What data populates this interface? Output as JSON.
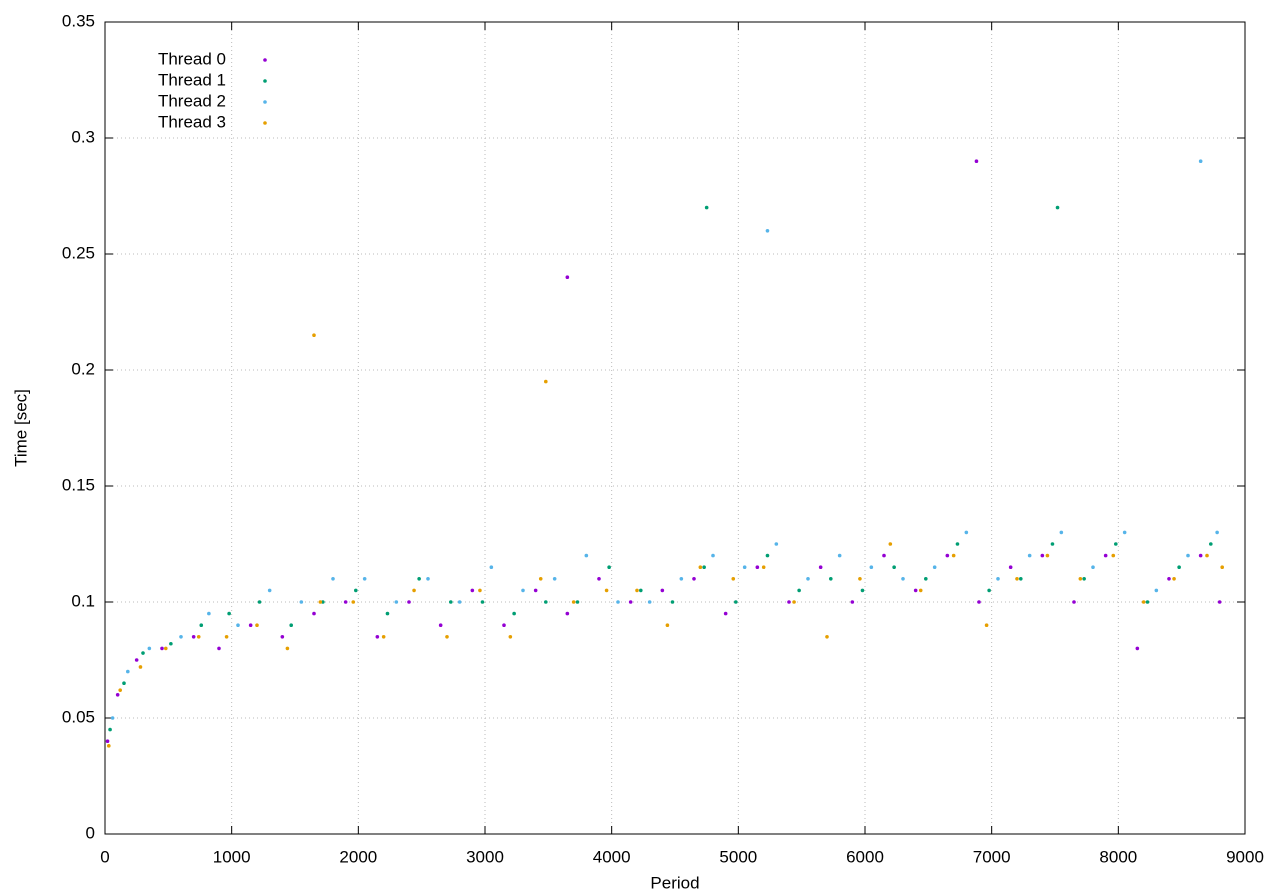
{
  "chart_data": {
    "type": "scatter",
    "x_label": "Period",
    "y_label": "Time [sec]",
    "xlim": [
      0,
      9000
    ],
    "ylim": [
      0,
      0.35
    ],
    "xticks": [
      0,
      1000,
      2000,
      3000,
      4000,
      5000,
      6000,
      7000,
      8000,
      9000
    ],
    "yticks": [
      0,
      0.05,
      0.1,
      0.15,
      0.2,
      0.25,
      0.3,
      0.35
    ],
    "grid": true,
    "legend": "top-left",
    "series": [
      {
        "name": "Thread 0",
        "color": "#9400d3",
        "x": [
          20,
          100,
          250,
          450,
          700,
          900,
          1150,
          1400,
          1650,
          1900,
          2150,
          2400,
          2650,
          2900,
          3150,
          3400,
          3650,
          3900,
          4150,
          4400,
          4650,
          4900,
          5150,
          5400,
          5650,
          5900,
          6150,
          6400,
          6650,
          6900,
          7150,
          7400,
          7650,
          7900,
          8150,
          8400,
          8650,
          8800,
          3650,
          6880
        ],
        "values": [
          0.04,
          0.06,
          0.075,
          0.08,
          0.085,
          0.08,
          0.09,
          0.085,
          0.095,
          0.1,
          0.085,
          0.1,
          0.09,
          0.105,
          0.09,
          0.105,
          0.095,
          0.11,
          0.1,
          0.105,
          0.11,
          0.095,
          0.115,
          0.1,
          0.115,
          0.1,
          0.12,
          0.105,
          0.12,
          0.1,
          0.115,
          0.12,
          0.1,
          0.12,
          0.08,
          0.11,
          0.12,
          0.1,
          0.24,
          0.29
        ]
      },
      {
        "name": "Thread 1",
        "color": "#009e73",
        "x": [
          40,
          150,
          300,
          520,
          760,
          980,
          1220,
          1470,
          1720,
          1980,
          2230,
          2480,
          2730,
          2980,
          3230,
          3480,
          3730,
          3980,
          4230,
          4480,
          4730,
          4980,
          5230,
          5480,
          5730,
          5980,
          6230,
          6480,
          6730,
          6980,
          7230,
          7480,
          7730,
          7980,
          8230,
          8480,
          8730,
          4750,
          7520
        ],
        "values": [
          0.045,
          0.065,
          0.078,
          0.082,
          0.09,
          0.095,
          0.1,
          0.09,
          0.1,
          0.105,
          0.095,
          0.11,
          0.1,
          0.1,
          0.095,
          0.1,
          0.1,
          0.115,
          0.105,
          0.1,
          0.115,
          0.1,
          0.12,
          0.105,
          0.11,
          0.105,
          0.115,
          0.11,
          0.125,
          0.105,
          0.11,
          0.125,
          0.11,
          0.125,
          0.1,
          0.115,
          0.125,
          0.27,
          0.27
        ]
      },
      {
        "name": "Thread 2",
        "color": "#56b4e9",
        "x": [
          60,
          180,
          350,
          600,
          820,
          1050,
          1300,
          1550,
          1800,
          2050,
          2300,
          2550,
          2800,
          3050,
          3300,
          3550,
          3800,
          4050,
          4300,
          4550,
          4800,
          5050,
          5300,
          5550,
          5800,
          6050,
          6300,
          6550,
          6800,
          7050,
          7300,
          7550,
          7800,
          8050,
          8300,
          8550,
          8780,
          5230,
          8650
        ],
        "values": [
          0.05,
          0.07,
          0.08,
          0.085,
          0.095,
          0.09,
          0.105,
          0.1,
          0.11,
          0.11,
          0.1,
          0.11,
          0.1,
          0.115,
          0.105,
          0.11,
          0.12,
          0.1,
          0.1,
          0.11,
          0.12,
          0.115,
          0.125,
          0.11,
          0.12,
          0.115,
          0.11,
          0.115,
          0.13,
          0.11,
          0.12,
          0.13,
          0.115,
          0.13,
          0.105,
          0.12,
          0.13,
          0.26,
          0.29
        ]
      },
      {
        "name": "Thread 3",
        "color": "#e69f00",
        "x": [
          30,
          120,
          280,
          480,
          740,
          960,
          1200,
          1440,
          1700,
          1960,
          2200,
          2440,
          2700,
          2960,
          3200,
          3440,
          3700,
          3960,
          4200,
          4440,
          4700,
          4960,
          5200,
          5440,
          5700,
          5960,
          6200,
          6440,
          6700,
          6960,
          7200,
          7440,
          7700,
          7960,
          8200,
          8440,
          8700,
          8820,
          1650,
          3480
        ],
        "values": [
          0.038,
          0.062,
          0.072,
          0.08,
          0.085,
          0.085,
          0.09,
          0.08,
          0.1,
          0.1,
          0.085,
          0.105,
          0.085,
          0.105,
          0.085,
          0.11,
          0.1,
          0.105,
          0.105,
          0.09,
          0.115,
          0.11,
          0.115,
          0.1,
          0.085,
          0.11,
          0.125,
          0.105,
          0.12,
          0.09,
          0.11,
          0.12,
          0.11,
          0.12,
          0.1,
          0.11,
          0.12,
          0.115,
          0.215,
          0.195
        ]
      }
    ]
  }
}
